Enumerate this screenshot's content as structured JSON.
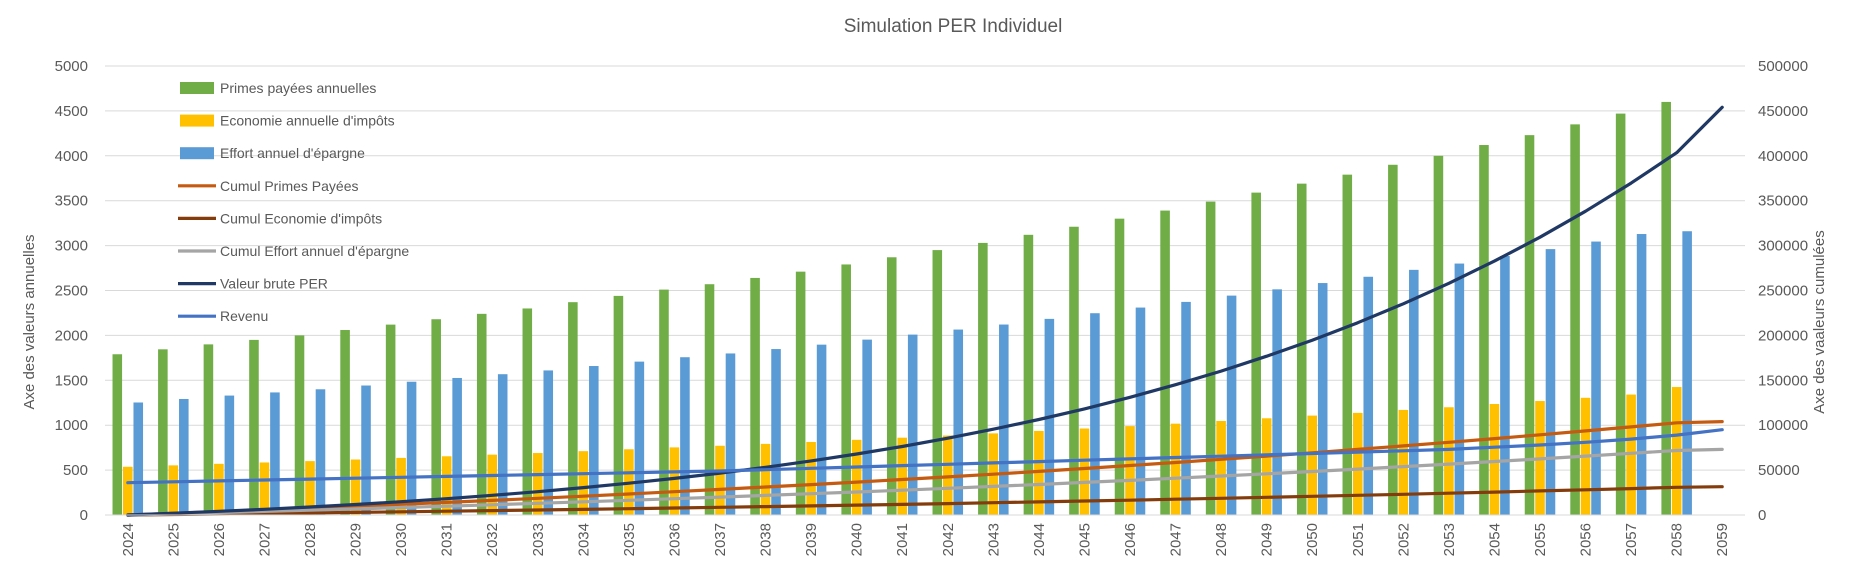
{
  "chart_data": {
    "type": "bar",
    "title": "Simulation PER Individuel",
    "ylabel_left": "Axe des valeurs annuelles",
    "ylabel_right": "Axe des vaaleurs cumulées",
    "ylim_left": [
      0,
      5000
    ],
    "ylim_right": [
      0,
      500000
    ],
    "yticks_left": [
      "0",
      "500",
      "1000",
      "1500",
      "2000",
      "2500",
      "3000",
      "3500",
      "4000",
      "4500",
      "5000"
    ],
    "yticks_right": [
      "0",
      "50000",
      "100000",
      "150000",
      "200000",
      "250000",
      "300000",
      "350000",
      "400000",
      "450000",
      "500000"
    ],
    "grid": true,
    "legend_position": "top-left",
    "categories": [
      "2024",
      "2025",
      "2026",
      "2027",
      "2028",
      "2029",
      "2030",
      "2031",
      "2032",
      "2033",
      "2034",
      "2035",
      "2036",
      "2037",
      "2038",
      "2039",
      "2040",
      "2041",
      "2042",
      "2043",
      "2044",
      "2045",
      "2046",
      "2047",
      "2048",
      "2049",
      "2050",
      "2051",
      "2052",
      "2053",
      "2054",
      "2055",
      "2056",
      "2057",
      "2058",
      "2059"
    ],
    "series": [
      {
        "name": "Primes payées annuelles",
        "kind": "bar",
        "axis": "left",
        "color": "#70AD47",
        "values": [
          1790,
          1845,
          1900,
          1950,
          2000,
          2060,
          2120,
          2180,
          2240,
          2300,
          2370,
          2440,
          2510,
          2570,
          2640,
          2710,
          2790,
          2870,
          2950,
          3030,
          3120,
          3210,
          3300,
          3390,
          3490,
          3590,
          3690,
          3790,
          3900,
          4000,
          4120,
          4230,
          4350,
          4470,
          4600,
          null
        ]
      },
      {
        "name": "Economie annuelle d'impôts",
        "kind": "bar",
        "axis": "left",
        "color": "#FFC000",
        "values": [
          537,
          553,
          570,
          585,
          600,
          618,
          636,
          654,
          672,
          690,
          711,
          732,
          753,
          771,
          792,
          813,
          837,
          861,
          885,
          909,
          936,
          963,
          990,
          1017,
          1047,
          1077,
          1107,
          1137,
          1170,
          1200,
          1236,
          1269,
          1305,
          1341,
          1425,
          null
        ]
      },
      {
        "name": "Effort annuel d'épargne",
        "kind": "bar",
        "axis": "left",
        "color": "#5B9BD5",
        "values": [
          1253,
          1292,
          1330,
          1365,
          1400,
          1442,
          1484,
          1526,
          1568,
          1610,
          1659,
          1708,
          1757,
          1799,
          1848,
          1897,
          1953,
          2009,
          2065,
          2121,
          2184,
          2247,
          2310,
          2373,
          2443,
          2513,
          2583,
          2653,
          2730,
          2800,
          2884,
          2961,
          3045,
          3129,
          3160,
          null
        ]
      },
      {
        "name": "Cumul Primes Payées",
        "kind": "line",
        "axis": "right",
        "color": "#C55A11",
        "values": [
          0,
          1845,
          3745,
          5695,
          7695,
          9755,
          11875,
          14055,
          16295,
          18595,
          20965,
          23405,
          25915,
          28485,
          31125,
          33835,
          36625,
          39495,
          42445,
          45475,
          48595,
          51805,
          55105,
          58495,
          61985,
          65575,
          69265,
          73055,
          76955,
          80955,
          85075,
          89305,
          93655,
          98125,
          102725,
          104000
        ]
      },
      {
        "name": "Cumul Economie d'impôts",
        "kind": "line",
        "axis": "right",
        "color": "#843C0C",
        "values": [
          0,
          553,
          1123,
          1708,
          2308,
          2926,
          3562,
          4216,
          4888,
          5578,
          6289,
          7021,
          7774,
          8545,
          9337,
          10150,
          10987,
          11848,
          12733,
          13642,
          14578,
          15541,
          16531,
          17548,
          18595,
          19672,
          20779,
          21916,
          23086,
          24286,
          25522,
          26791,
          28096,
          29437,
          30862,
          31500
        ]
      },
      {
        "name": "Cumul Effort annuel d'épargne",
        "kind": "line",
        "axis": "right",
        "color": "#A5A5A5",
        "values": [
          0,
          1292,
          2622,
          3987,
          5387,
          6829,
          8313,
          9839,
          11407,
          13017,
          14676,
          16384,
          18141,
          19940,
          21788,
          23685,
          25638,
          27647,
          29712,
          31833,
          34017,
          36264,
          38574,
          40947,
          43390,
          45903,
          48486,
          51139,
          53869,
          56669,
          59553,
          62514,
          65559,
          68688,
          71848,
          73000
        ]
      },
      {
        "name": "Valeur brute PER",
        "kind": "line",
        "axis": "right",
        "color": "#203864",
        "values": [
          0,
          2000,
          4100,
          6400,
          8900,
          11700,
          14800,
          18200,
          21900,
          26000,
          30500,
          35400,
          40800,
          46700,
          53100,
          60200,
          67900,
          76300,
          85500,
          95500,
          106400,
          118200,
          131100,
          145100,
          160300,
          176800,
          194700,
          214100,
          235200,
          258000,
          282700,
          309400,
          338300,
          369600,
          403400,
          454000
        ]
      },
      {
        "name": "Revenu",
        "kind": "line",
        "axis": "right",
        "color": "#4472C4",
        "values": [
          36000,
          37000,
          38000,
          39000,
          40000,
          41000,
          42000,
          43000,
          44000,
          45000,
          46000,
          47000,
          48000,
          49000,
          50500,
          52000,
          53500,
          55000,
          56500,
          58000,
          59500,
          61000,
          62500,
          64000,
          65500,
          67000,
          68500,
          70000,
          71500,
          73000,
          75500,
          78000,
          81000,
          84500,
          89000,
          95000
        ]
      }
    ]
  }
}
